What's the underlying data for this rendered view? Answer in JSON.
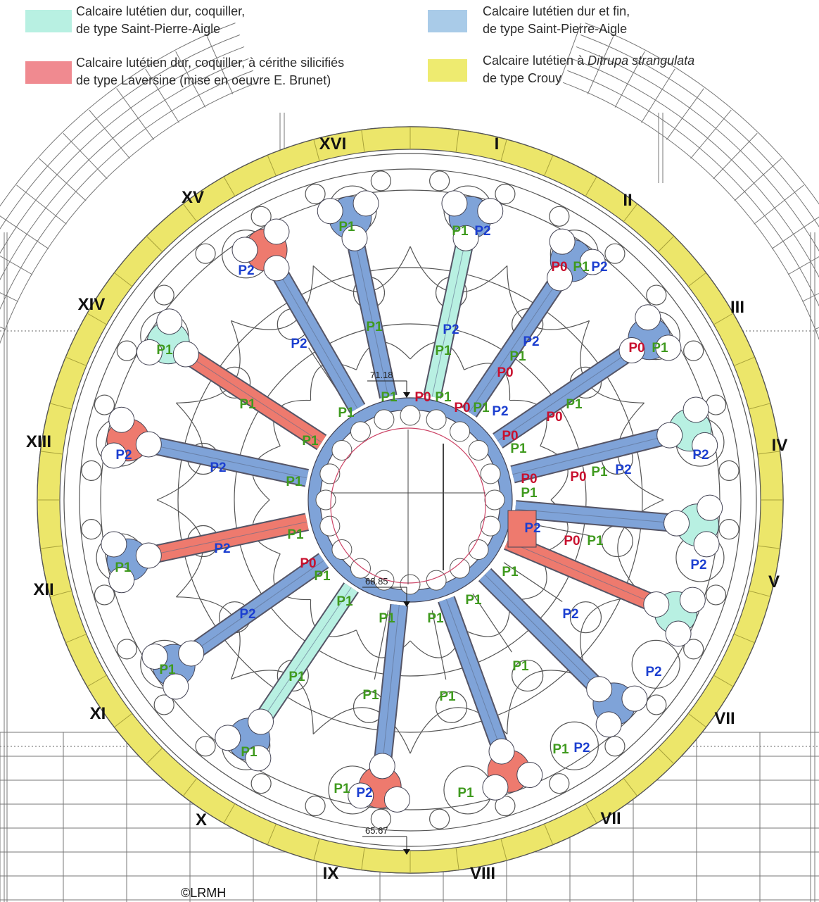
{
  "legend": {
    "item1": {
      "line1": "Calcaire lutétien dur, coquiller,",
      "line2": "de type Saint-Pierre-Aigle",
      "color": "#b8f0e2"
    },
    "item2": {
      "line1": "Calcaire lutétien dur et fin,",
      "line2": "de type Saint-Pierre-Aigle",
      "color": "#a9cbe8"
    },
    "item3": {
      "line1": "Calcaire lutétien dur, coquiller, à cérithe silicifiés",
      "line2": "de type Laversine (mise en oeuvre E. Brunet)",
      "color": "#f08a90"
    },
    "item4": {
      "line1_pre": "Calcaire lutétien à ",
      "line1_italic": "Ditrupa strangulata",
      "line2": "de type Crouy",
      "color": "#eeeb70"
    }
  },
  "colors": {
    "aqua": "#b8f0e2",
    "blue": "#7fa3d8",
    "red": "#ee7a6e",
    "yellow": "#ece66a",
    "green_text": "#3f9a1e",
    "blue_text": "#1c3fd0",
    "red_text": "#c8102e"
  },
  "roman_labels": [
    "XVI",
    "I",
    "II",
    "III",
    "IV",
    "V",
    "VII",
    "VII",
    "VIII",
    "IX",
    "X",
    "XI",
    "XII",
    "XIII",
    "XIV",
    "XV"
  ],
  "dimensions": [
    "71.18",
    "68.85",
    "65.67"
  ],
  "label_text": {
    "p0": "P0",
    "p1": "P1",
    "p2": "P2"
  },
  "credit": "©LRMH",
  "icons": [
    "dimension-arrow-icon"
  ]
}
